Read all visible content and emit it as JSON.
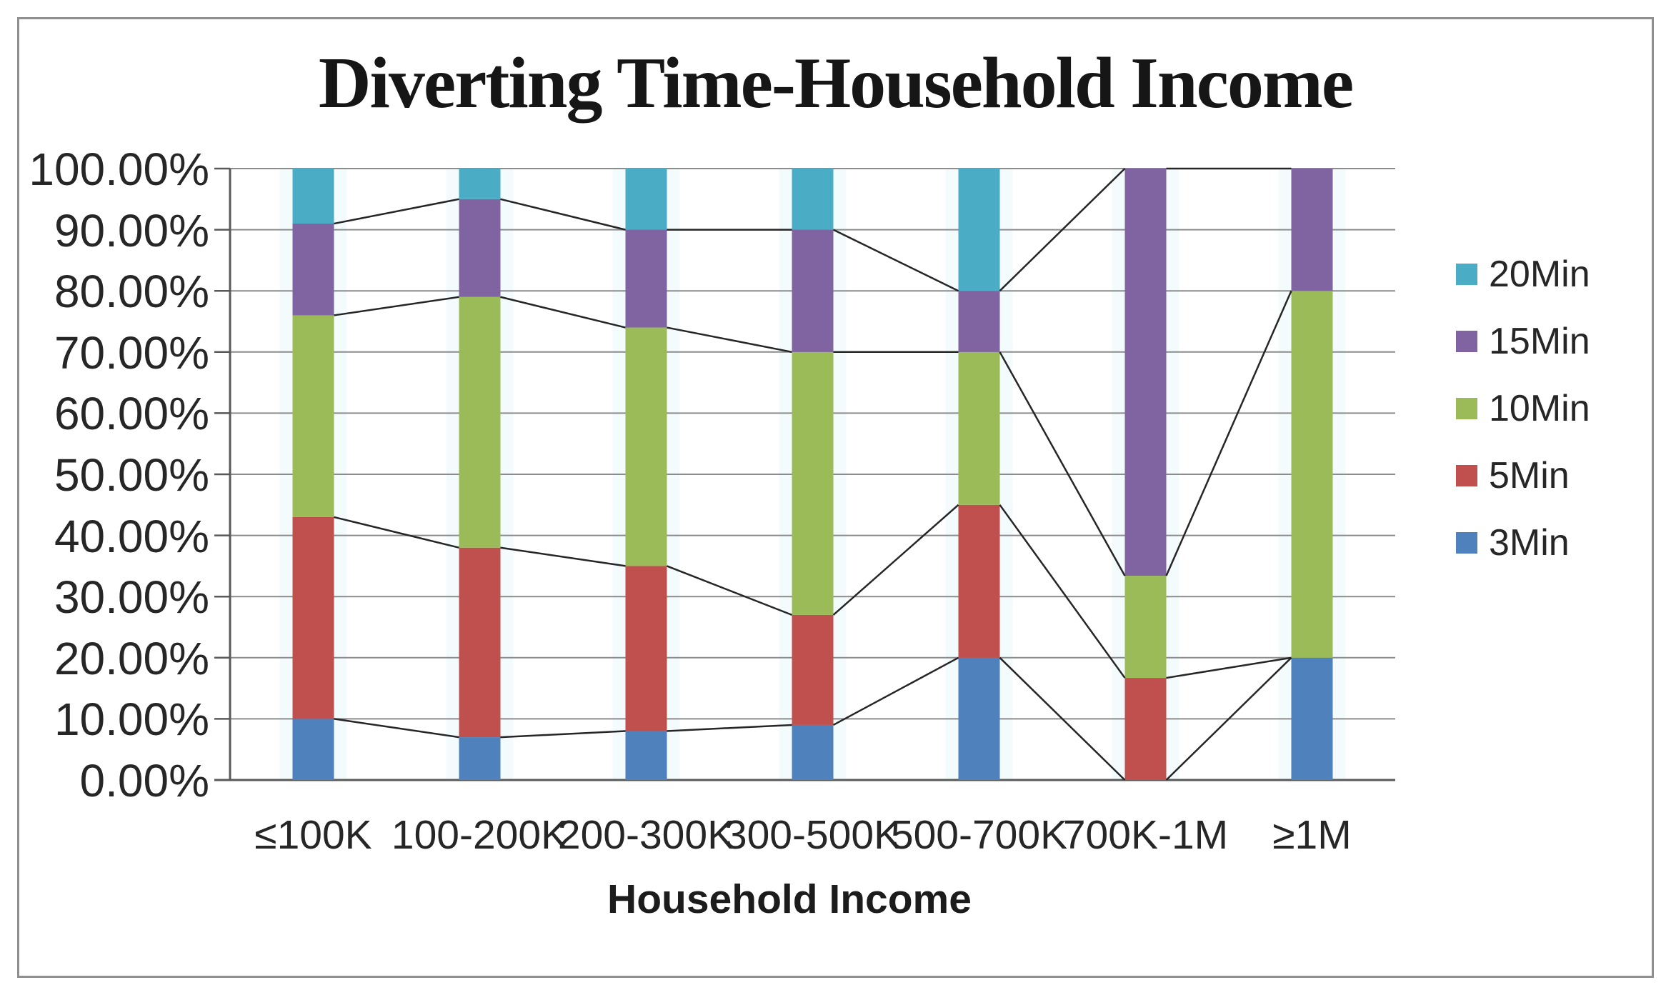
{
  "chart_data": {
    "type": "bar",
    "stacking": "percent",
    "title": "Diverting Time-Household Income",
    "xlabel": "Household Income",
    "ylabel": "",
    "categories": [
      "≤100K",
      "100-200K",
      "200-300K",
      "300-500K",
      "500-700K",
      "700K-1M",
      "≥1M"
    ],
    "series": [
      {
        "name": "3Min",
        "color": "#4F81BD",
        "values": [
          10,
          7,
          8,
          9,
          20,
          0,
          20
        ]
      },
      {
        "name": "5Min",
        "color": "#C0504D",
        "values": [
          33,
          31,
          27,
          18,
          25,
          16.7,
          0
        ]
      },
      {
        "name": "10Min",
        "color": "#9BBB59",
        "values": [
          33,
          41,
          39,
          43,
          25,
          16.7,
          60
        ]
      },
      {
        "name": "15Min",
        "color": "#8064A2",
        "values": [
          15,
          16,
          16,
          20,
          10,
          66.6,
          20
        ]
      },
      {
        "name": "20Min",
        "color": "#4BACC6",
        "values": [
          9,
          5,
          10,
          10,
          20,
          0,
          0
        ]
      }
    ],
    "legend": {
      "position": "right",
      "items_top_to_bottom": [
        "20Min",
        "15Min",
        "10Min",
        "5Min",
        "3Min"
      ]
    },
    "y_axis": {
      "min": 0,
      "max": 100,
      "step": 10,
      "tick_labels": [
        "100.00%",
        "90.00%",
        "80.00%",
        "70.00%",
        "60.00%",
        "50.00%",
        "40.00%",
        "30.00%",
        "20.00%",
        "10.00%",
        "0.00%"
      ]
    },
    "grid": true,
    "series_lines": true,
    "style_colors": {
      "gridline": "#8c8c8c",
      "axis": "#595959",
      "series_line": "#262626",
      "frame_border": "#8f8f8f",
      "text": "#262626"
    }
  }
}
